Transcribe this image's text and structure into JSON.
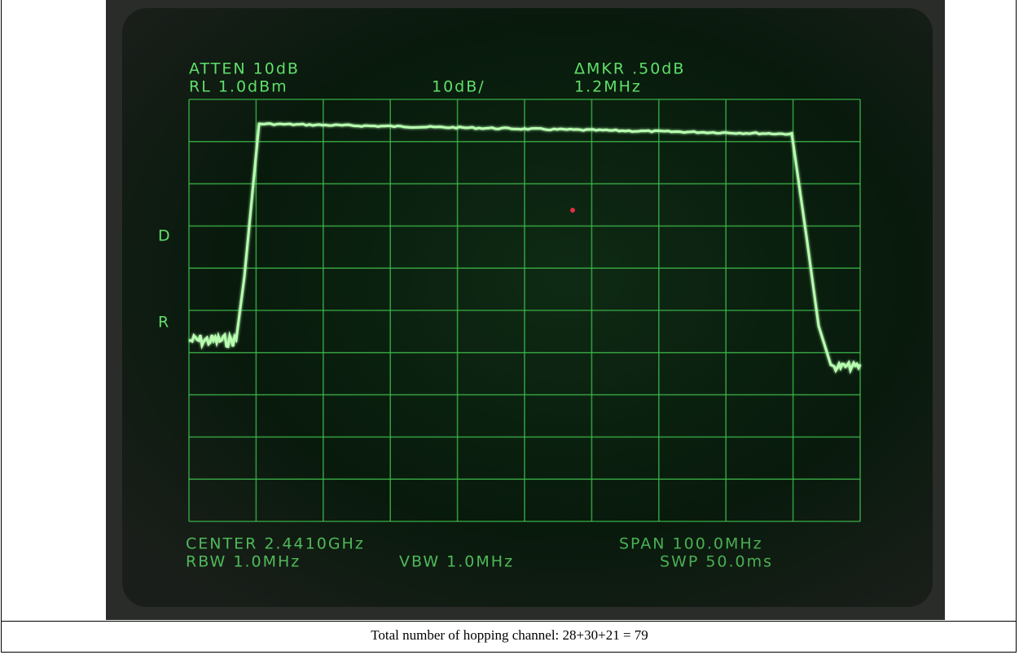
{
  "screen": {
    "atten": "ATTEN 10dB",
    "rl": "RL 1.0dBm",
    "scale": "10dB/",
    "marker": "ΔMKR .50dB",
    "marker_freq": "1.2MHz",
    "side_labels": [
      "D",
      "R"
    ],
    "center": "CENTER 2.4410GHz",
    "span": "SPAN 100.0MHz",
    "rbw": "RBW 1.0MHz",
    "vbw": "VBW 1.0MHz",
    "swp": "SWP 50.0ms"
  },
  "caption": "Total number of hopping channel: 28+30+21 = 79"
}
